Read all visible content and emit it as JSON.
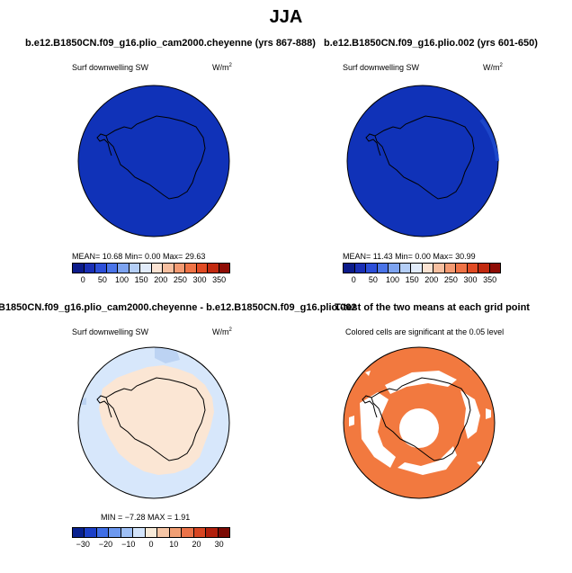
{
  "figure_title": "JJA",
  "panels": [
    {
      "title": "b.e12.B1850CN.f09_g16.plio_cam2000.cheyenne (yrs 867-888)",
      "variable": "Surf downwelling SW",
      "units_base": "W/m",
      "units_exp": "2",
      "stats": "MEAN=   10.68   Min=    0.00   Max=   29.63",
      "colorbar_ticks": [
        "0",
        "50",
        "100",
        "150",
        "200",
        "250",
        "300",
        "350"
      ]
    },
    {
      "title": "b.e12.B1850CN.f09_g16.plio.002 (yrs 601-650)",
      "variable": "Surf downwelling SW",
      "units_base": "W/m",
      "units_exp": "2",
      "stats": "MEAN=   11.43   Min=    0.00   Max=   30.99",
      "colorbar_ticks": [
        "0",
        "50",
        "100",
        "150",
        "200",
        "250",
        "300",
        "350"
      ]
    },
    {
      "title": "B1850CN.f09_g16.plio_cam2000.cheyenne - b.e12.B1850CN.f09_g16.plio.002",
      "variable": "Surf downwelling SW",
      "units_base": "W/m",
      "units_exp": "2",
      "stats": "MIN =  −7.28  MAX =    1.91",
      "colorbar_ticks": [
        "−30",
        "−20",
        "−10",
        "0",
        "10",
        "20",
        "30"
      ]
    },
    {
      "title": "T-test of the two means at each grid point",
      "subtitle": "Colored cells are significant at the 0.05 level"
    }
  ],
  "colors": {
    "abs_scale": [
      "#0c1b8a",
      "#1a2fb5",
      "#2d4fd8",
      "#4a74e8",
      "#7da3f0",
      "#b4cef7",
      "#e2ecfb",
      "#fbe3d3",
      "#f7bfa0",
      "#f49a72",
      "#ef7346",
      "#e14b24",
      "#c22a10",
      "#8f0c05"
    ],
    "diff_scale": [
      "#08218f",
      "#1b3fc7",
      "#3f6ee6",
      "#6c98ef",
      "#9fc0f6",
      "#d3e4fb",
      "#f7ead9",
      "#f6c6a6",
      "#f19f74",
      "#ea7248",
      "#d74522",
      "#b11f0c",
      "#7b0a04"
    ],
    "ocean_abs": "#1032b8",
    "ocean_diff": "#d7e7fb",
    "land_diff": "#fbe6d4",
    "ttest_fill": "#f2793f"
  }
}
